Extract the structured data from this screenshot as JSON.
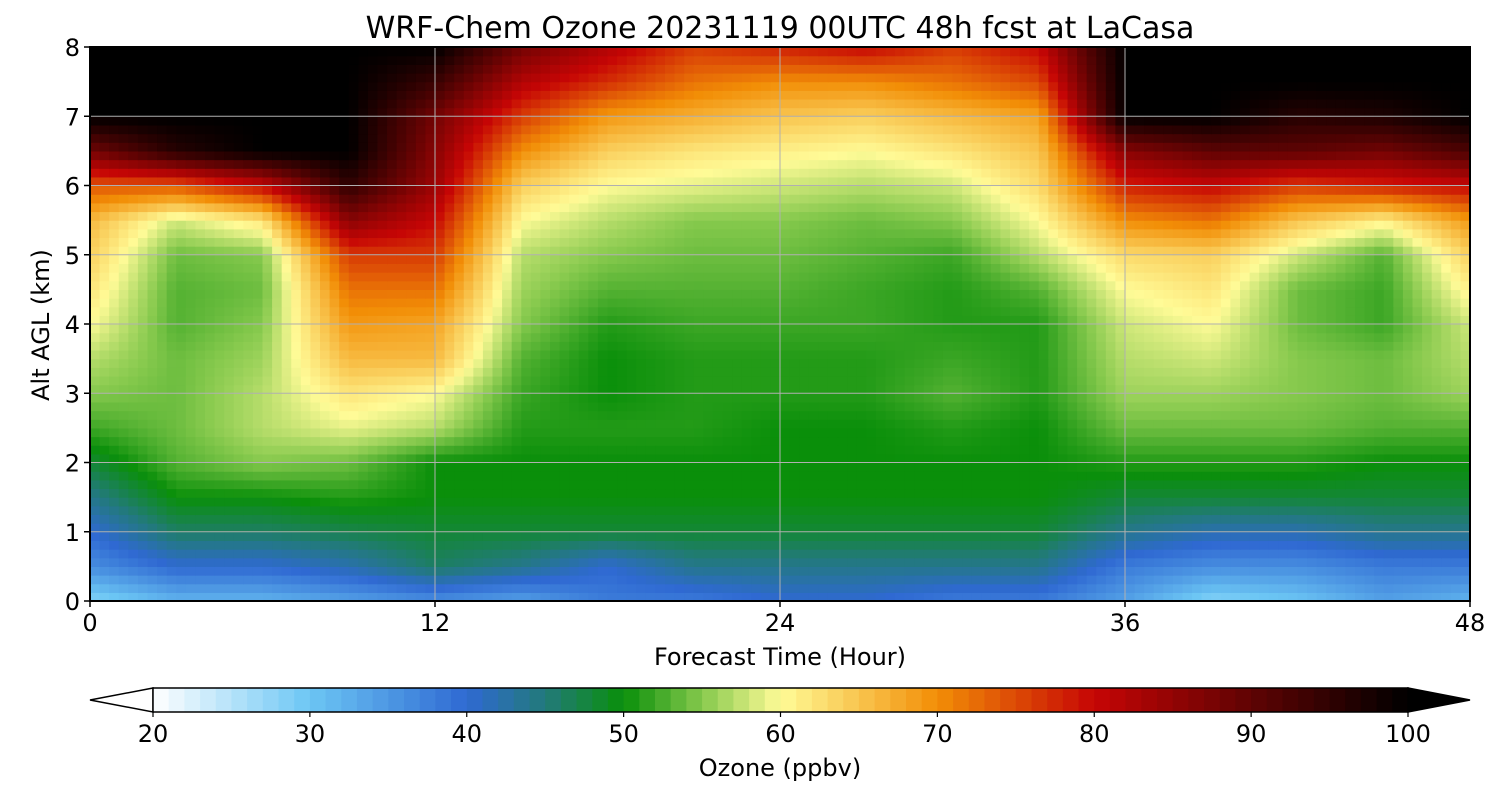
{
  "chart_data": {
    "type": "heatmap",
    "title": "WRF-Chem Ozone  20231119 00UTC 48h fcst at LaCasa",
    "xlabel": "Forecast Time (Hour)",
    "ylabel": "Alt AGL (km)",
    "xlim": [
      0,
      48
    ],
    "ylim": [
      0,
      8
    ],
    "x_ticks": [
      0,
      12,
      24,
      36,
      48
    ],
    "y_ticks": [
      0,
      1,
      2,
      3,
      4,
      5,
      6,
      7,
      8
    ],
    "grid": true,
    "x": [
      0,
      3,
      6,
      9,
      12,
      15,
      18,
      21,
      24,
      27,
      30,
      33,
      36,
      39,
      42,
      45,
      48
    ],
    "y": [
      0,
      0.5,
      1,
      1.5,
      2,
      2.5,
      3,
      3.5,
      4,
      4.5,
      5,
      5.5,
      6,
      6.5,
      7,
      7.5,
      8
    ],
    "z_ppbv": [
      [
        28,
        32,
        32,
        34,
        36,
        34,
        38,
        38,
        40,
        40,
        38,
        38,
        34,
        28,
        30,
        34,
        32
      ],
      [
        36,
        40,
        40,
        42,
        46,
        44,
        40,
        44,
        44,
        44,
        44,
        44,
        38,
        36,
        36,
        38,
        38
      ],
      [
        40,
        46,
        46,
        47,
        48,
        48,
        48,
        48,
        48,
        48,
        48,
        48,
        44,
        42,
        42,
        44,
        44
      ],
      [
        44,
        50,
        50,
        51,
        50,
        50,
        50,
        50,
        50,
        50,
        50,
        50,
        48,
        48,
        48,
        48,
        48
      ],
      [
        48,
        53,
        55,
        54,
        50,
        50,
        50,
        50,
        50,
        50,
        50,
        50,
        51,
        51,
        51,
        50,
        50
      ],
      [
        52,
        54,
        57,
        59,
        57,
        51,
        51,
        51,
        50,
        50,
        51,
        50,
        54,
        54,
        54,
        53,
        53
      ],
      [
        55,
        54,
        57,
        62,
        60,
        52,
        50,
        51,
        51,
        51,
        53,
        51,
        56,
        56,
        55,
        54,
        56
      ],
      [
        57,
        54,
        56,
        66,
        66,
        53,
        50,
        51,
        51,
        51,
        52,
        51,
        57,
        58,
        55,
        54,
        57
      ],
      [
        60,
        53,
        55,
        69,
        68,
        55,
        51,
        52,
        52,
        52,
        51,
        51,
        58,
        60,
        54,
        52,
        58
      ],
      [
        62,
        53,
        54,
        72,
        72,
        56,
        53,
        53,
        53,
        52,
        51,
        53,
        60,
        62,
        54,
        52,
        61
      ],
      [
        64,
        54,
        55,
        76,
        76,
        57,
        55,
        54,
        54,
        53,
        52,
        57,
        63,
        64,
        58,
        53,
        64
      ],
      [
        66,
        58,
        62,
        86,
        80,
        60,
        57,
        55,
        55,
        54,
        55,
        60,
        70,
        72,
        65,
        61,
        69
      ],
      [
        74,
        74,
        80,
        95,
        84,
        64,
        60,
        59,
        58,
        57,
        58,
        63,
        78,
        80,
        76,
        78,
        80
      ],
      [
        88,
        96,
        100,
        100,
        86,
        70,
        64,
        62,
        61,
        60,
        62,
        65,
        86,
        90,
        90,
        88,
        92
      ],
      [
        100,
        100,
        100,
        100,
        88,
        76,
        69,
        67,
        65,
        64,
        66,
        68,
        100,
        100,
        96,
        97,
        100
      ],
      [
        100,
        100,
        100,
        100,
        94,
        82,
        77,
        72,
        70,
        70,
        72,
        75,
        100,
        100,
        100,
        100,
        100
      ],
      [
        100,
        100,
        100,
        100,
        100,
        88,
        82,
        76,
        78,
        80,
        76,
        80,
        100,
        100,
        100,
        100,
        100
      ]
    ],
    "colorbar": {
      "label": "Ozone  (ppbv)",
      "min": 20,
      "max": 100,
      "extend": "both",
      "ticks": [
        20,
        30,
        40,
        50,
        60,
        70,
        80,
        90,
        100
      ],
      "color_stops": [
        {
          "value": 20,
          "color": "#ffffff"
        },
        {
          "value": 30,
          "color": "#6cc6f4"
        },
        {
          "value": 40,
          "color": "#2f69d2"
        },
        {
          "value": 45,
          "color": "#227a7a"
        },
        {
          "value": 50,
          "color": "#0a8f0a"
        },
        {
          "value": 55,
          "color": "#86c94d"
        },
        {
          "value": 60,
          "color": "#fffb97"
        },
        {
          "value": 70,
          "color": "#f28e06"
        },
        {
          "value": 80,
          "color": "#c60505"
        },
        {
          "value": 90,
          "color": "#5f0303"
        },
        {
          "value": 100,
          "color": "#000000"
        }
      ]
    }
  }
}
